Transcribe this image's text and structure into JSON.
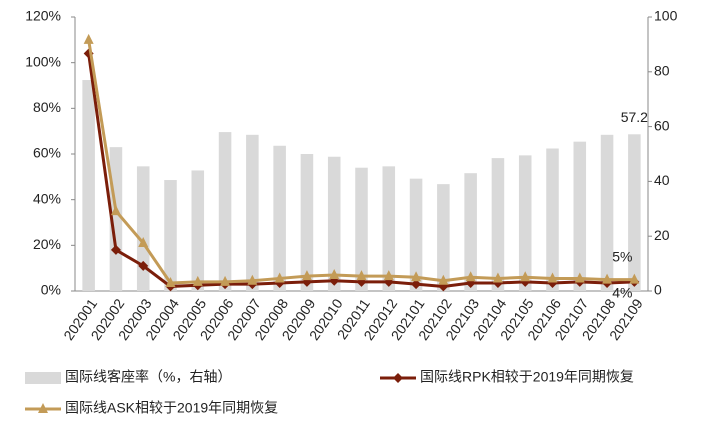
{
  "chart_data": {
    "type": "bar-line",
    "categories": [
      "202001",
      "202002",
      "202003",
      "202004",
      "202005",
      "202006",
      "202007",
      "202008",
      "202009",
      "202010",
      "202011",
      "202012",
      "202101",
      "202102",
      "202103",
      "202104",
      "202105",
      "202106",
      "202107",
      "202108",
      "202109"
    ],
    "series": [
      {
        "name": "国际线客座率（%，右轴）",
        "type": "bar",
        "axis": "y2",
        "color": "#d9d9d9",
        "values": [
          77,
          52.5,
          45.5,
          40.5,
          44,
          58,
          57,
          53,
          50,
          49,
          45,
          45.5,
          41,
          39,
          43,
          48.5,
          49.5,
          52,
          54.5,
          57,
          57.2
        ],
        "value_labels": [
          null,
          null,
          null,
          null,
          null,
          null,
          null,
          null,
          null,
          null,
          null,
          null,
          null,
          null,
          null,
          null,
          null,
          null,
          null,
          null,
          "57.2"
        ]
      },
      {
        "name": "国际线RPK相较于2019年同期恢复",
        "type": "line",
        "marker": "diamond",
        "color": "#7b1e0a",
        "values": [
          104,
          18,
          11,
          2,
          2.5,
          3,
          3,
          3.5,
          4,
          4.5,
          4,
          4,
          3,
          2,
          3.5,
          3.5,
          4,
          3.5,
          4,
          3.5,
          4
        ],
        "value_labels": [
          null,
          null,
          null,
          null,
          null,
          null,
          null,
          null,
          null,
          null,
          null,
          null,
          null,
          null,
          null,
          null,
          null,
          null,
          null,
          null,
          "4%"
        ]
      },
      {
        "name": "国际线ASK相较于2019年同期恢复",
        "type": "line",
        "marker": "triangle",
        "color": "#c39b57",
        "values": [
          110,
          35,
          21,
          3.5,
          4,
          4,
          4.5,
          5.5,
          6.5,
          7,
          6.5,
          6.5,
          6,
          4.5,
          6,
          5.5,
          6,
          5.5,
          5.5,
          5,
          5
        ],
        "value_labels": [
          null,
          null,
          null,
          null,
          null,
          null,
          null,
          null,
          null,
          null,
          null,
          null,
          null,
          null,
          null,
          null,
          null,
          null,
          null,
          null,
          "5%"
        ]
      }
    ],
    "ylim": [
      0,
      120
    ],
    "yticks": [
      {
        "value": 0,
        "label": "0%"
      },
      {
        "value": 20,
        "label": "20%"
      },
      {
        "value": 40,
        "label": "40%"
      },
      {
        "value": 60,
        "label": "60%"
      },
      {
        "value": 80,
        "label": "80%"
      },
      {
        "value": 100,
        "label": "100%"
      },
      {
        "value": 120,
        "label": "120%"
      }
    ],
    "y2lim": [
      0,
      100
    ],
    "y2ticks": [
      0,
      20,
      40,
      60,
      80,
      100
    ]
  }
}
